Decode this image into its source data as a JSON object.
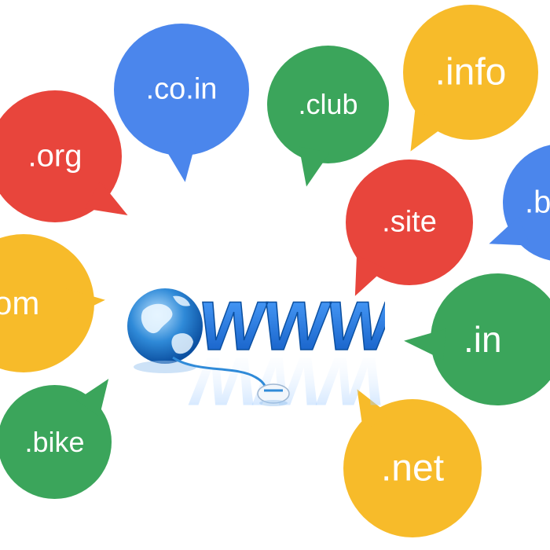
{
  "colors": {
    "red": "#e8453c",
    "blue": "#4b86ec",
    "green": "#3ba55b",
    "yellow": "#f7bb2a",
    "globe": "#2f8ad8",
    "www": "#1f6fd6"
  },
  "bubbles": {
    "coin": {
      "label": ".co.in",
      "color": "blue"
    },
    "club": {
      "label": ".club",
      "color": "green"
    },
    "info": {
      "label": ".info",
      "color": "yellow"
    },
    "org": {
      "label": ".org",
      "color": "red"
    },
    "b": {
      "label": ".b",
      "color": "blue"
    },
    "site": {
      "label": ".site",
      "color": "red"
    },
    "com": {
      "label": "om",
      "color": "yellow"
    },
    "in": {
      "label": ".in",
      "color": "green"
    },
    "bike": {
      "label": ".bike",
      "color": "green"
    },
    "net": {
      "label": ".net",
      "color": "yellow"
    }
  },
  "www": {
    "text": "WWW",
    "icons": [
      "globe-icon",
      "mouse-icon"
    ]
  }
}
